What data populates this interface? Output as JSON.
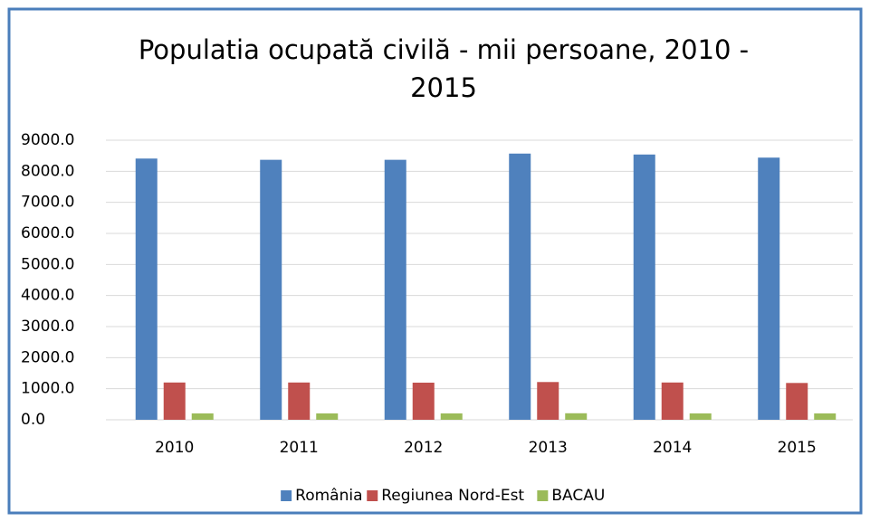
{
  "chart_data": {
    "type": "bar",
    "title": "Populatia ocupată civilă - mii persoane, 2010 - 2015",
    "categories": [
      "2010",
      "2011",
      "2012",
      "2013",
      "2014",
      "2015"
    ],
    "series": [
      {
        "name": "România",
        "color": "#4f81bd",
        "values": [
          8410,
          8370,
          8370,
          8570,
          8540,
          8440
        ]
      },
      {
        "name": "Regiunea Nord-Est",
        "color": "#c0504d",
        "values": [
          1200,
          1200,
          1195,
          1215,
          1200,
          1185
        ]
      },
      {
        "name": "BACAU",
        "color": "#9bbb59",
        "values": [
          205,
          205,
          205,
          210,
          205,
          205
        ]
      }
    ],
    "ylim": [
      0,
      9000
    ],
    "yticks": [
      {
        "value": 0,
        "label": "0.0"
      },
      {
        "value": 1000,
        "label": "1000.0"
      },
      {
        "value": 2000,
        "label": "2000.0"
      },
      {
        "value": 3000,
        "label": "3000.0"
      },
      {
        "value": 4000,
        "label": "4000.0"
      },
      {
        "value": 5000,
        "label": "5000.0"
      },
      {
        "value": 6000,
        "label": "6000.0"
      },
      {
        "value": 7000,
        "label": "7000.0"
      },
      {
        "value": 8000,
        "label": "8000.0"
      },
      {
        "value": 9000,
        "label": "9000.0"
      }
    ],
    "grid": true,
    "legend": "bottom"
  }
}
